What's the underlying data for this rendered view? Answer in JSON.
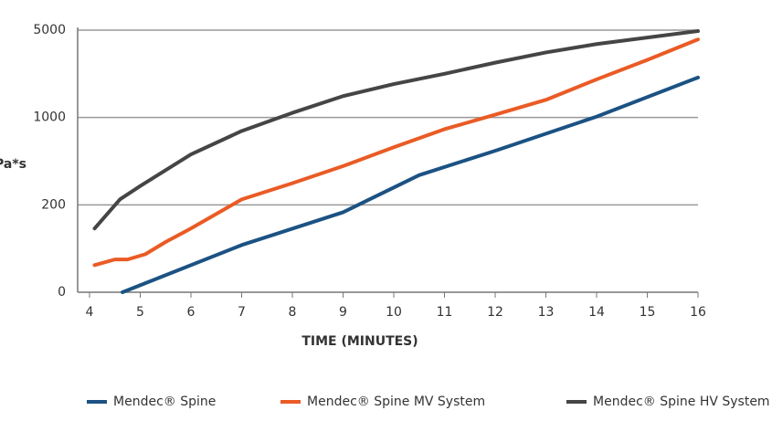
{
  "chart_data": {
    "type": "line",
    "y_label": "Pa*s",
    "x_label": "TIME (MINUTES)",
    "y_scale": "tick-spaced",
    "grid": true,
    "legend": "bottom",
    "xlim": [
      4,
      16
    ],
    "xticks": [
      4,
      5,
      6,
      7,
      8,
      9,
      10,
      11,
      12,
      13,
      14,
      15,
      16
    ],
    "ylim": [
      0,
      5000
    ],
    "yticks": [
      0,
      200,
      1000,
      5000
    ],
    "series": [
      {
        "name": "Mendec® Spine",
        "color": "#1b5283",
        "x": [
          4.65,
          7,
          9,
          10.5,
          12,
          14,
          16
        ],
        "values": [
          0,
          108,
          183,
          472,
          695,
          1040,
          2830
        ]
      },
      {
        "name": "Mendec® Spine MV System",
        "color": "#ea5b25",
        "x": [
          4.1,
          4.5,
          4.75,
          5.1,
          5.5,
          6,
          7,
          8,
          9,
          10,
          11,
          12,
          13,
          14,
          15,
          16
        ],
        "values": [
          62,
          75,
          75,
          87,
          115,
          146,
          250,
          398,
          555,
          728,
          893,
          1128,
          1808,
          2745,
          3638,
          4574
        ]
      },
      {
        "name": "Mendec® Spine HV System",
        "color": "#454545",
        "x": [
          4.1,
          4.6,
          5,
          6,
          7,
          8,
          9,
          10,
          11,
          12,
          13,
          14,
          15,
          16
        ],
        "values": [
          146,
          250,
          373,
          662,
          876,
          1213,
          1979,
          2532,
          3000,
          3511,
          3979,
          4362,
          4660,
          4957
        ]
      }
    ]
  }
}
